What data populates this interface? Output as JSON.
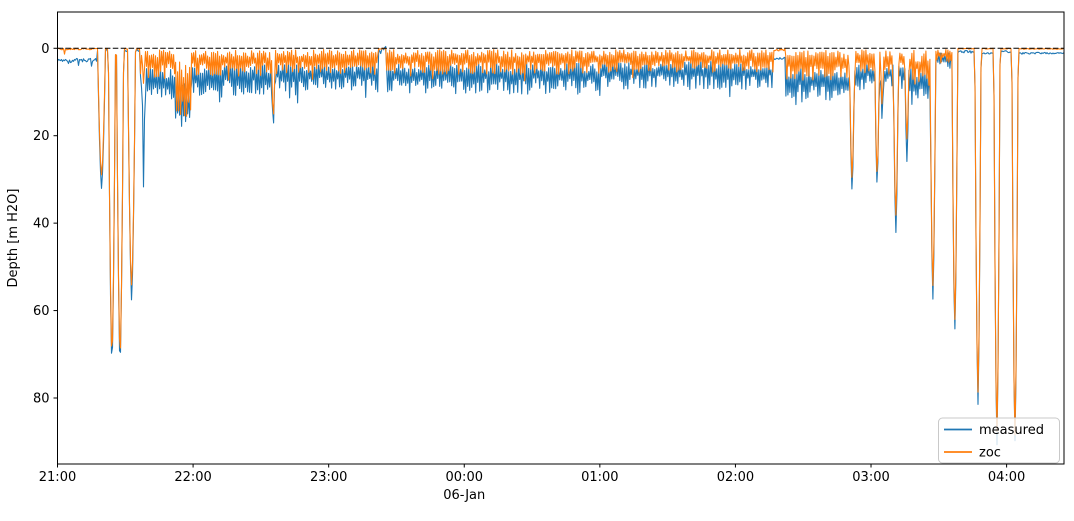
{
  "figure": {
    "kind": "dive-depth-profile",
    "background": "#ffffff"
  },
  "chart_data": {
    "type": "line",
    "title": "",
    "ylabel": "Depth [m H2O]",
    "xlabel": "",
    "x_date_label": "06-Jan",
    "x_axis_unit": "time (minutes after 21:00)",
    "xlim": [
      0,
      445.4
    ],
    "ylim": [
      -8.3,
      95.1
    ],
    "y_axis_inverted": true,
    "grid": false,
    "legend_position": "lower right",
    "x_ticks": [
      {
        "t": 0,
        "label": "21:00"
      },
      {
        "t": 60,
        "label": "22:00"
      },
      {
        "t": 120,
        "label": "23:00"
      },
      {
        "t": 180,
        "label": "00:00",
        "sublabel": "06-Jan"
      },
      {
        "t": 240,
        "label": "01:00"
      },
      {
        "t": 300,
        "label": "02:00"
      },
      {
        "t": 360,
        "label": "03:00"
      },
      {
        "t": 420,
        "label": "04:00"
      }
    ],
    "y_ticks": [
      {
        "d": 0,
        "label": "0"
      },
      {
        "d": 20,
        "label": "20"
      },
      {
        "d": 40,
        "label": "40"
      },
      {
        "d": 60,
        "label": "60"
      },
      {
        "d": 80,
        "label": "80"
      }
    ],
    "zero_reference_line": {
      "depth": 0,
      "style": "dashed",
      "color": "#000000"
    },
    "series": [
      {
        "name": "measured",
        "color": "#1f77b4"
      },
      {
        "name": "zoc",
        "color": "#ff7f0e"
      }
    ],
    "noise_segments": [
      {
        "t0": 0,
        "t1": 17.7,
        "style": "line",
        "m": [
          2.3,
          3.1
        ],
        "z": [
          0,
          0.35
        ],
        "spike_p": 0.05,
        "spike_extra": 1.6
      },
      {
        "t0": 17.7,
        "t1": 36.6,
        "style": "line",
        "m": [
          0.2,
          0.8
        ],
        "z": [
          0,
          0.18
        ],
        "spike_p": 0.01,
        "spike_extra": 0.5
      },
      {
        "t0": 36.6,
        "t1": 52,
        "style": "band",
        "m": [
          4,
          12.5
        ],
        "z": [
          0,
          7
        ],
        "spike_p": 0.05,
        "spike_extra": 2.5
      },
      {
        "t0": 52,
        "t1": 59,
        "style": "band",
        "m": [
          7,
          19
        ],
        "z": [
          2,
          16
        ],
        "spike_p": 0.04,
        "spike_extra": 1.5
      },
      {
        "t0": 59,
        "t1": 96,
        "style": "band",
        "m": [
          3,
          11
        ],
        "z": [
          0,
          6.5
        ],
        "spike_p": 0.04,
        "spike_extra": 2.2
      },
      {
        "t0": 96,
        "t1": 142,
        "style": "band",
        "m": [
          3,
          10
        ],
        "z": [
          0,
          6
        ],
        "spike_p": 0.04,
        "spike_extra": 2.5
      },
      {
        "t0": 142,
        "t1": 145.5,
        "style": "line",
        "m": [
          -0.5,
          1.2
        ],
        "z": [
          0,
          0.2
        ],
        "spike_p": 0,
        "spike_extra": 0
      },
      {
        "t0": 145.5,
        "t1": 240,
        "style": "band",
        "m": [
          3,
          10.5
        ],
        "z": [
          0,
          6
        ],
        "spike_p": 0.035,
        "spike_extra": 2.5
      },
      {
        "t0": 240,
        "t1": 317,
        "style": "band",
        "m": [
          2.5,
          9.5
        ],
        "z": [
          0,
          5.5
        ],
        "spike_p": 0.035,
        "spike_extra": 2.5
      },
      {
        "t0": 317,
        "t1": 322,
        "style": "line",
        "m": [
          1.5,
          2.9
        ],
        "z": [
          0,
          0.6
        ],
        "spike_p": 0,
        "spike_extra": 0
      },
      {
        "t0": 322,
        "t1": 350.5,
        "style": "band",
        "m": [
          4,
          12
        ],
        "z": [
          0,
          7.5
        ],
        "spike_p": 0.05,
        "spike_extra": 2.5
      },
      {
        "t0": 350.5,
        "t1": 377,
        "style": "band",
        "m": [
          3,
          9.5
        ],
        "z": [
          0,
          6
        ],
        "spike_p": 0.04,
        "spike_extra": 2
      },
      {
        "t0": 377,
        "t1": 386.5,
        "style": "band",
        "m": [
          4,
          13
        ],
        "z": [
          0,
          9
        ],
        "spike_p": 0.05,
        "spike_extra": 2.5
      },
      {
        "t0": 386.5,
        "t1": 396,
        "style": "band",
        "m": [
          0.8,
          4.5
        ],
        "z": [
          0,
          3.5
        ],
        "spike_p": 0.02,
        "spike_extra": 1
      },
      {
        "t0": 396,
        "t1": 406.5,
        "style": "line",
        "m": [
          0.5,
          1.1
        ],
        "z": [
          0,
          0.2
        ],
        "spike_p": 0,
        "spike_extra": 0
      },
      {
        "t0": 406.5,
        "t1": 415,
        "style": "line",
        "m": [
          0.9,
          1.3
        ],
        "z": [
          0,
          0.2
        ],
        "spike_p": 0,
        "spike_extra": 0
      },
      {
        "t0": 415,
        "t1": 423,
        "style": "line",
        "m": [
          0.4,
          1.0
        ],
        "z": [
          0,
          0.2
        ],
        "spike_p": 0,
        "spike_extra": 0
      },
      {
        "t0": 423,
        "t1": 445.4,
        "style": "line",
        "m": [
          0.9,
          1.3
        ],
        "z": [
          0.05,
          0.25
        ],
        "spike_p": 0.01,
        "spike_extra": 0.4
      }
    ],
    "dive_spikes": [
      {
        "t": 19.5,
        "w": 3.5,
        "measured": 32,
        "zoc": 29
      },
      {
        "t": 24.1,
        "w": 3.2,
        "measured": 72,
        "zoc": 70
      },
      {
        "t": 27.7,
        "w": 3.2,
        "measured": 72,
        "zoc": 70.5
      },
      {
        "t": 32.8,
        "w": 3.5,
        "measured": 57,
        "zoc": 55
      },
      {
        "t": 38.1,
        "w": 1.3,
        "measured": 31.5,
        "zoc": 8
      },
      {
        "t": 95.5,
        "w": 1.7,
        "measured": 18,
        "zoc": 16
      },
      {
        "t": 351.6,
        "w": 2.4,
        "measured": 32,
        "zoc": 29.5
      },
      {
        "t": 362.7,
        "w": 2.2,
        "measured": 31.3,
        "zoc": 29
      },
      {
        "t": 364.9,
        "w": 1.5,
        "measured": 16.5,
        "zoc": 13
      },
      {
        "t": 371.0,
        "w": 2.4,
        "measured": 42.3,
        "zoc": 38.5
      },
      {
        "t": 375.9,
        "w": 1.9,
        "measured": 26.3,
        "zoc": 21
      },
      {
        "t": 387.4,
        "w": 2.6,
        "measured": 57.2,
        "zoc": 55
      },
      {
        "t": 397.1,
        "w": 2.6,
        "measured": 65.2,
        "zoc": 63
      },
      {
        "t": 407.3,
        "w": 2.8,
        "measured": 80.9,
        "zoc": 79
      },
      {
        "t": 415.7,
        "w": 2.8,
        "measured": 90.0,
        "zoc": 88.5
      },
      {
        "t": 423.7,
        "w": 2.8,
        "measured": 90.5,
        "zoc": 89
      }
    ]
  },
  "legend": {
    "entries": [
      {
        "label": "measured",
        "color": "#1f77b4"
      },
      {
        "label": "zoc",
        "color": "#ff7f0e"
      }
    ]
  }
}
